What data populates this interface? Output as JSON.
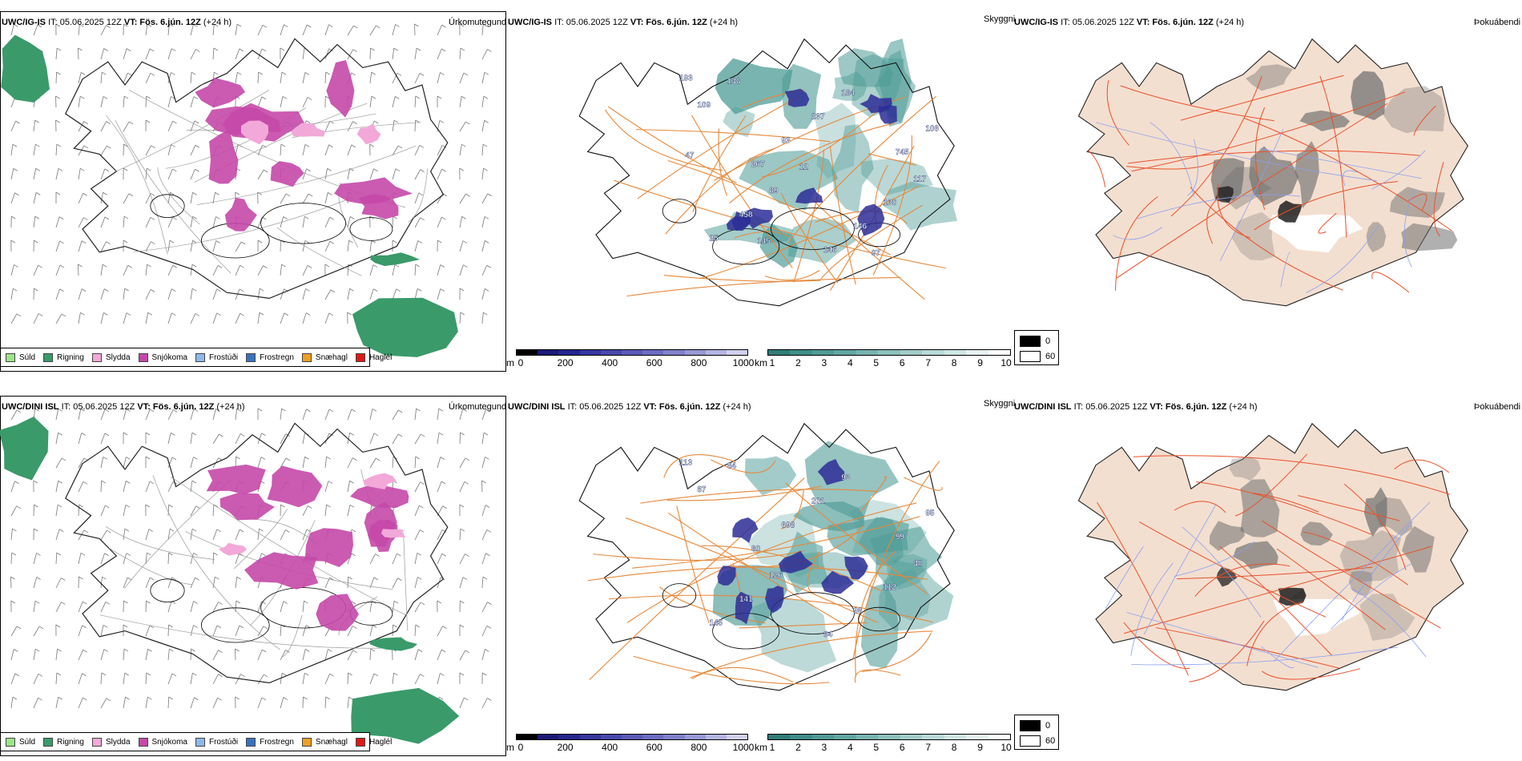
{
  "rows": [
    {
      "precip_panel": {
        "model": "UWC/IG-IS",
        "it_text": "IT: 05.06.2025 12Z",
        "vt_label": "VT: Fös. 6.jún. 12Z",
        "lead": "(+24 h)",
        "right_label": "Úrkomutegund"
      },
      "cloud_panel": {
        "model": "UWC/IG-IS",
        "it_text": "IT: 05.06.2025 12Z",
        "vt_label": "VT: Fös. 6.jún. 12Z",
        "lead": "(+24 h)",
        "right_label": "Skyggni",
        "labels": [
          "193",
          "267",
          "146",
          "745",
          "25",
          "93",
          "146",
          "106",
          "458",
          "237",
          "130",
          "109",
          "89",
          "184",
          "117",
          "136",
          "12",
          "97",
          "47",
          "145"
        ]
      },
      "fog_panel": {
        "model": "UWC/IG-IS",
        "it_text": "IT: 05.06.2025 12Z",
        "vt_label": "VT: Fös. 6.jún. 12Z",
        "lead": "(+24 h)",
        "right_label": "Þokuábendi"
      }
    },
    {
      "precip_panel": {
        "model": "UWC/DINI ISL",
        "it_text": "IT: 05.06.2025 12Z",
        "vt_label": "VT: Fös. 6.jún. 12Z",
        "lead": "(+24 h)",
        "right_label": "Úrkomutegund"
      },
      "cloud_panel": {
        "model": "UWC/DINI ISL",
        "it_text": "IT: 05.06.2025 12Z",
        "vt_label": "VT: Fös. 6.jún. 12Z",
        "lead": "(+24 h)",
        "right_label": "Skyggni",
        "labels": [
          "113",
          "80",
          "84",
          "99",
          "145",
          "698",
          "96",
          "95",
          "141",
          "201",
          "112",
          "87",
          "126",
          "93",
          "38",
          "84"
        ]
      },
      "fog_panel": {
        "model": "UWC/DINI ISL",
        "it_text": "IT: 05.06.2025 12Z",
        "vt_label": "VT: Fös. 6.jún. 12Z",
        "lead": "(+24 h)",
        "right_label": "Þokuábendi"
      }
    }
  ],
  "precip_legend": [
    {
      "label": "Súld",
      "color": "#9be58a"
    },
    {
      "label": "Rigning",
      "color": "#3a9a6a"
    },
    {
      "label": "Slydda",
      "color": "#f2a8d8"
    },
    {
      "label": "Snjókoma",
      "color": "#c548a8"
    },
    {
      "label": "Frostúði",
      "color": "#8fb8ea"
    },
    {
      "label": "Frostregn",
      "color": "#3a72c0"
    },
    {
      "label": "Snæhagl",
      "color": "#f0a020"
    },
    {
      "label": "Haglél",
      "color": "#e01818"
    }
  ],
  "ceiling_bar": {
    "unit": "m",
    "ticks": [
      "0",
      "200",
      "400",
      "600",
      "800",
      "1000"
    ],
    "colors": [
      "#000000",
      "#1a1a78",
      "#25258f",
      "#3636a0",
      "#4848ac",
      "#5a5ab8",
      "#6c6cc2",
      "#8080cc",
      "#9898d6",
      "#b4b4e2",
      "#d0d0ee"
    ]
  },
  "visibility_bar": {
    "unit": "km",
    "ticks": [
      "1",
      "2",
      "3",
      "4",
      "5",
      "6",
      "7",
      "8",
      "9",
      "10"
    ],
    "colors": [
      "#2f7d78",
      "#3e8d88",
      "#509a95",
      "#62a6a2",
      "#76b3af",
      "#8cc0bc",
      "#a2ccc9",
      "#b8d9d6",
      "#cfe6e3",
      "#e6f2f1",
      "#ffffff"
    ]
  },
  "fog_legend": [
    {
      "label": "0",
      "color": "#000000"
    },
    {
      "label": "60",
      "color": "#ffffff"
    }
  ]
}
